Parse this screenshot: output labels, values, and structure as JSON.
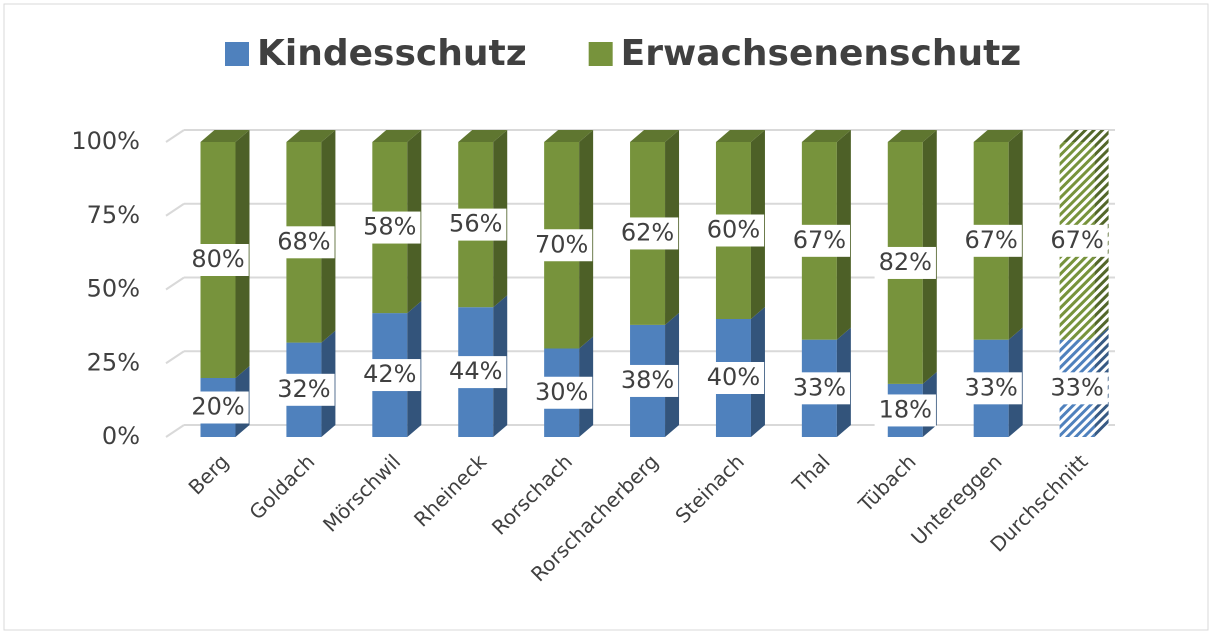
{
  "chart_data": {
    "type": "stacked_bar_3d",
    "categories": [
      "Berg",
      "Goldach",
      "Mörschwil",
      "Rheineck",
      "Rorschach",
      "Rorschacherberg",
      "Steinach",
      "Thal",
      "Tübach",
      "Untereggen",
      "Durchschnitt"
    ],
    "series": [
      {
        "name": "Kindesschutz",
        "color": "#4f81bd",
        "values": [
          20,
          32,
          42,
          44,
          30,
          38,
          40,
          33,
          18,
          33,
          33
        ],
        "value_labels": [
          "20%",
          "32%",
          "42%",
          "44%",
          "30%",
          "38%",
          "40%",
          "33%",
          "18%",
          "33%",
          "33%"
        ]
      },
      {
        "name": "Erwachsenenschutz",
        "color": "#77933c",
        "values": [
          80,
          68,
          58,
          56,
          70,
          62,
          60,
          67,
          82,
          67,
          67
        ],
        "value_labels": [
          "80%",
          "68%",
          "58%",
          "56%",
          "70%",
          "62%",
          "60%",
          "67%",
          "82%",
          "67%",
          "67%"
        ]
      }
    ],
    "ylim": [
      0,
      100
    ],
    "yticks": [
      {
        "value": 0,
        "label": "0%"
      },
      {
        "value": 25,
        "label": "25%"
      },
      {
        "value": 50,
        "label": "50%"
      },
      {
        "value": 75,
        "label": "75%"
      },
      {
        "value": 100,
        "label": "100%"
      }
    ],
    "grid": true,
    "legend": "top",
    "hatch_last": true
  }
}
